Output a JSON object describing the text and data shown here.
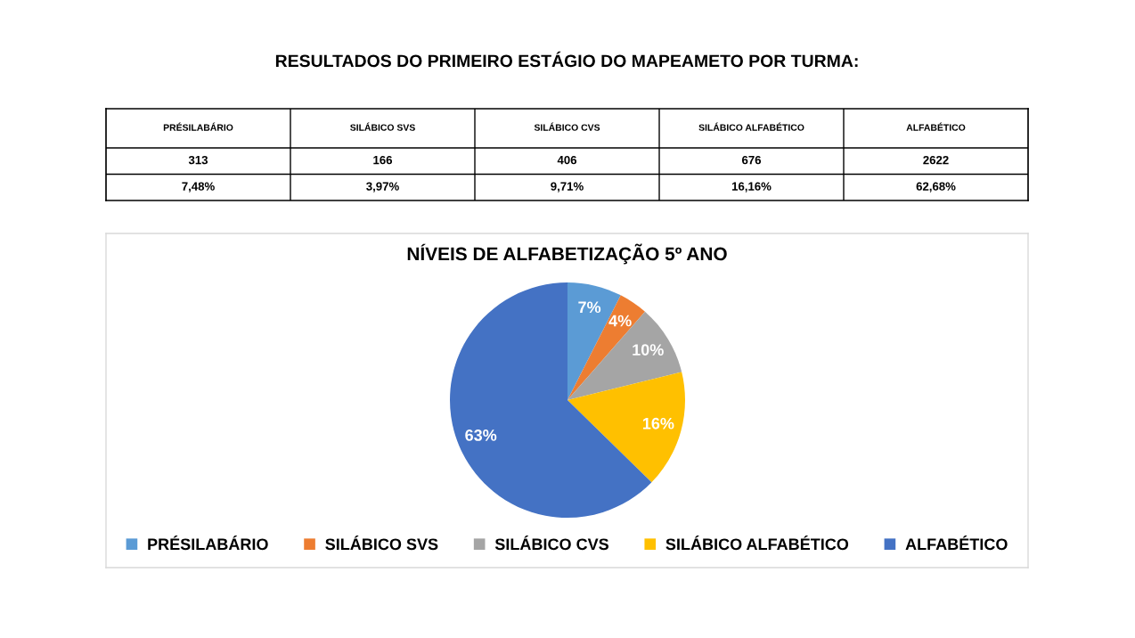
{
  "chart_data": [
    {
      "type": "other",
      "title": "RESULTADOS DO PRIMEIRO ESTÁGIO DO MAPEAMETO POR TURMA:",
      "categories": [
        "PRÉSILABÁRIO",
        "SILÁBICO SVS",
        "SILÁBICO CVS",
        "SILÁBICO ALFABÉTICO",
        "ALFABÉTICO"
      ],
      "data_labels": true,
      "series": [
        {
          "values": [
            313,
            166,
            406,
            676,
            2622
          ]
        },
        {
          "values": [
            7.48,
            3.97,
            9.71,
            16.16,
            62.68
          ],
          "value_labels": [
            "7,48%",
            "3,97%",
            "9,71%",
            "16,16%",
            "62,68%"
          ]
        }
      ]
    },
    {
      "type": "pie",
      "title": "NÍVEIS DE ALFABETIZAÇÃO 5º ANO",
      "categories": [
        "PRÉSILABÁRIO",
        "SILÁBICO SVS",
        "SILÁBICO CVS",
        "SILÁBICO ALFABÉTICO",
        "ALFABÉTICO"
      ],
      "values": [
        7.48,
        3.97,
        9.71,
        16.16,
        62.68
      ],
      "value_labels": [
        "7%",
        "4%",
        "10%",
        "16%",
        "63%"
      ],
      "colors": [
        "#5b9bd5",
        "#ed7d31",
        "#a5a5a5",
        "#ffc000",
        "#4472c4"
      ],
      "legend": "bottom"
    }
  ]
}
